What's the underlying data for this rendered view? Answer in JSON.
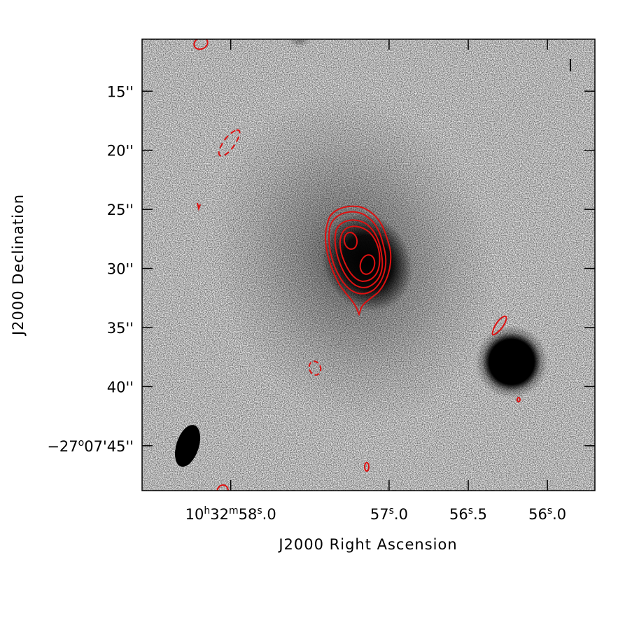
{
  "chart_data": {
    "type": "contour",
    "xlabel": "J2000 Right Ascension",
    "ylabel": "J2000 Declination",
    "x_ticks": [
      {
        "value": 58.0,
        "h": "10",
        "m": "32",
        "s": "58",
        "frac": ".0"
      },
      {
        "value": 57.0,
        "s": "57",
        "frac": ".0"
      },
      {
        "value": 56.5,
        "s": "56",
        "frac": ".5"
      },
      {
        "value": 56.0,
        "s": "56",
        "frac": ".0"
      }
    ],
    "y_ticks": [
      {
        "value": 15,
        "label": "15''"
      },
      {
        "value": 20,
        "label": "20''"
      },
      {
        "value": 25,
        "label": "25''"
      },
      {
        "value": 30,
        "label": "30''"
      },
      {
        "value": 35,
        "label": "35''"
      },
      {
        "value": 40,
        "label": "40''"
      },
      {
        "value": 45,
        "d": "−27",
        "dm": "07",
        "ds": "45''"
      }
    ],
    "xlim": [
      58.56,
      55.7
    ],
    "ylim": [
      48.8,
      10.6
    ],
    "background": "greyscale optical image",
    "contour_color": "#dd1111",
    "beam": "filled black ellipse, lower-left"
  }
}
